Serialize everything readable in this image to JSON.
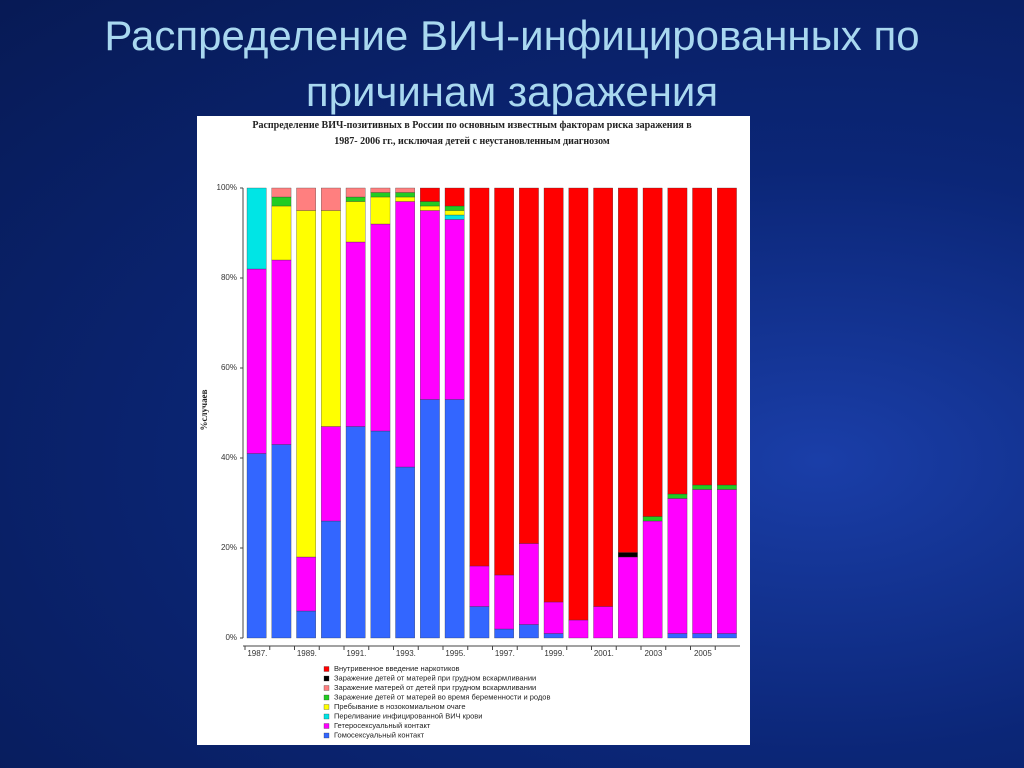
{
  "slide_title": "Распределение ВИЧ-инфицированных по причинам заражения",
  "chart_data": {
    "type": "stacked_bar",
    "title": "Распределение ВИЧ-позитивных в России по основным известным факторам риска заражения в 1987- 2006 гг., исключая детей с неустановленным диагнозом",
    "y_label": "%случаев",
    "categories": [
      "1987.",
      null,
      "1989.",
      null,
      "1991.",
      null,
      "1993.",
      null,
      "1995.",
      null,
      "1997.",
      null,
      "1999.",
      null,
      "2001.",
      null,
      "2003",
      null,
      "2005",
      null
    ],
    "ylim": [
      0,
      100
    ],
    "yticks": [
      {
        "value": 0,
        "label": "0%"
      },
      {
        "value": 20,
        "label": "20%"
      },
      {
        "value": 40,
        "label": "40%"
      },
      {
        "value": 60,
        "label": "60%"
      },
      {
        "value": 80,
        "label": "80%"
      },
      {
        "value": 100,
        "label": "100%"
      }
    ],
    "series": [
      {
        "name": "Гомосексуальный контакт",
        "color": "#3366ff",
        "values": [
          41,
          43,
          6,
          26,
          47,
          46,
          38,
          53,
          53,
          7,
          2,
          3,
          1,
          0,
          0,
          0,
          0,
          1,
          1,
          1
        ]
      },
      {
        "name": "Гетеросексуальный контакт",
        "color": "#ff00ff",
        "values": [
          41,
          41,
          12,
          21,
          41,
          46,
          59,
          42,
          40,
          9,
          12,
          18,
          7,
          4,
          7,
          18,
          26,
          30,
          32,
          32
        ]
      },
      {
        "name": "Переливание  инфицированной ВИЧ крови",
        "color": "#00e5e5",
        "values": [
          18,
          0,
          0,
          0,
          0,
          0,
          0,
          0,
          1,
          0,
          0,
          0,
          0,
          0,
          0,
          0,
          0,
          0,
          0,
          0
        ]
      },
      {
        "name": "Пребывание в нозокомиальном очаге",
        "color": "#ffff00",
        "values": [
          0,
          12,
          77,
          48,
          9,
          6,
          1,
          1,
          1,
          0,
          0,
          0,
          0,
          0,
          0,
          0,
          0,
          0,
          0,
          0
        ]
      },
      {
        "name": "Заражение детей от матерей во время беременности и  родов",
        "color": "#22cc22",
        "values": [
          0,
          2,
          0,
          0,
          1,
          1,
          1,
          1,
          1,
          0,
          0,
          0,
          0,
          0,
          0,
          0,
          1,
          1,
          1,
          1
        ]
      },
      {
        "name": "Заражение матерей от детей при грудном вскармливании",
        "color": "#ff7f7f",
        "values": [
          0,
          2,
          5,
          5,
          2,
          1,
          1,
          0,
          0,
          0,
          0,
          0,
          0,
          0,
          0,
          0,
          0,
          0,
          0,
          0
        ]
      },
      {
        "name": "Заражение детей от матерей при грудном вскармливании",
        "color": "#000000",
        "values": [
          0,
          0,
          0,
          0,
          0,
          0,
          0,
          0,
          0,
          0,
          0,
          0,
          0,
          0,
          0,
          1,
          0,
          0,
          0,
          0
        ]
      },
      {
        "name": "Внутривенное введение наркотиков",
        "color": "#ff0000",
        "values": [
          0,
          0,
          0,
          0,
          0,
          0,
          0,
          3,
          4,
          84,
          86,
          79,
          92,
          96,
          93,
          81,
          73,
          68,
          66,
          66
        ]
      }
    ]
  }
}
